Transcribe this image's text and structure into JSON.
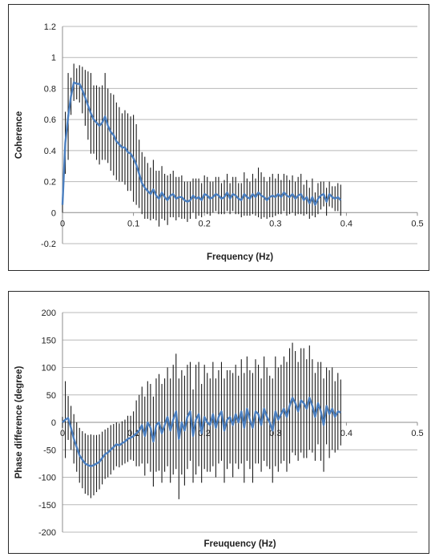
{
  "colors": {
    "grid": "#b8b8b8",
    "errorbar": "#1a1a1a",
    "line": "#4a7ebf",
    "axis": "#8c8c8c"
  },
  "chart_data": [
    {
      "type": "line",
      "title": "",
      "xlabel": "Frequency (Hz)",
      "ylabel": "Coherence",
      "xlim": [
        0,
        0.5
      ],
      "ylim": [
        -0.2,
        1.2
      ],
      "xticks": [
        0,
        0.1,
        0.2,
        0.3,
        0.4,
        0.5
      ],
      "yticks": [
        -0.2,
        0,
        0.2,
        0.4,
        0.6,
        0.8,
        1,
        1.2
      ],
      "xtick_labels": [
        "0",
        "0.1",
        "0.2",
        "0.3",
        "0.4",
        "0.5"
      ],
      "ytick_labels": [
        "-0.2",
        "0",
        "0.2",
        "0.4",
        "0.6",
        "0.8",
        "1",
        "1.2"
      ],
      "grid": true,
      "series": [
        {
          "x": [
            0.0,
            0.004,
            0.008,
            0.012,
            0.016,
            0.02,
            0.024,
            0.028,
            0.032,
            0.036,
            0.04,
            0.044,
            0.048,
            0.052,
            0.056,
            0.06,
            0.064,
            0.068,
            0.072,
            0.076,
            0.08,
            0.084,
            0.088,
            0.092,
            0.096,
            0.1,
            0.104,
            0.108,
            0.112,
            0.116,
            0.12,
            0.124,
            0.128,
            0.132,
            0.136,
            0.14,
            0.144,
            0.148,
            0.152,
            0.156,
            0.16,
            0.164,
            0.168,
            0.172,
            0.176,
            0.18,
            0.184,
            0.188,
            0.192,
            0.196,
            0.2,
            0.204,
            0.208,
            0.212,
            0.216,
            0.22,
            0.224,
            0.228,
            0.232,
            0.236,
            0.24,
            0.244,
            0.248,
            0.252,
            0.256,
            0.26,
            0.264,
            0.268,
            0.272,
            0.276,
            0.28,
            0.284,
            0.288,
            0.292,
            0.296,
            0.3,
            0.304,
            0.308,
            0.312,
            0.316,
            0.32,
            0.324,
            0.328,
            0.332,
            0.336,
            0.34,
            0.344,
            0.348,
            0.352,
            0.356,
            0.36,
            0.364,
            0.368,
            0.372,
            0.376,
            0.38,
            0.384,
            0.388,
            0.392
          ],
          "y": [
            0.05,
            0.45,
            0.62,
            0.75,
            0.84,
            0.83,
            0.83,
            0.79,
            0.74,
            0.69,
            0.64,
            0.6,
            0.58,
            0.56,
            0.58,
            0.62,
            0.56,
            0.52,
            0.5,
            0.46,
            0.44,
            0.42,
            0.42,
            0.39,
            0.38,
            0.35,
            0.31,
            0.25,
            0.19,
            0.16,
            0.14,
            0.12,
            0.15,
            0.11,
            0.09,
            0.13,
            0.1,
            0.08,
            0.11,
            0.12,
            0.09,
            0.1,
            0.1,
            0.08,
            0.07,
            0.08,
            0.11,
            0.09,
            0.1,
            0.08,
            0.12,
            0.11,
            0.09,
            0.1,
            0.12,
            0.11,
            0.09,
            0.1,
            0.13,
            0.09,
            0.12,
            0.11,
            0.09,
            0.08,
            0.12,
            0.1,
            0.09,
            0.12,
            0.1,
            0.13,
            0.11,
            0.1,
            0.08,
            0.1,
            0.11,
            0.1,
            0.12,
            0.1,
            0.13,
            0.11,
            0.1,
            0.12,
            0.09,
            0.11,
            0.12,
            0.08,
            0.1,
            0.06,
            0.1,
            0.05,
            0.09,
            0.11,
            0.12,
            0.07,
            0.12,
            0.1,
            0.09,
            0.1,
            0.08
          ],
          "err": [
            0.05,
            0.2,
            0.28,
            0.12,
            0.12,
            0.1,
            0.12,
            0.15,
            0.18,
            0.22,
            0.26,
            0.22,
            0.24,
            0.25,
            0.24,
            0.28,
            0.24,
            0.25,
            0.26,
            0.25,
            0.24,
            0.22,
            0.24,
            0.25,
            0.24,
            0.28,
            0.26,
            0.22,
            0.2,
            0.2,
            0.18,
            0.17,
            0.19,
            0.16,
            0.18,
            0.17,
            0.15,
            0.16,
            0.14,
            0.15,
            0.14,
            0.13,
            0.14,
            0.12,
            0.13,
            0.12,
            0.11,
            0.13,
            0.12,
            0.11,
            0.12,
            0.12,
            0.11,
            0.1,
            0.11,
            0.12,
            0.1,
            0.11,
            0.12,
            0.1,
            0.11,
            0.12,
            0.1,
            0.11,
            0.14,
            0.12,
            0.11,
            0.13,
            0.12,
            0.16,
            0.15,
            0.13,
            0.12,
            0.13,
            0.14,
            0.12,
            0.13,
            0.11,
            0.12,
            0.13,
            0.11,
            0.12,
            0.11,
            0.12,
            0.13,
            0.1,
            0.11,
            0.1,
            0.12,
            0.08,
            0.1,
            0.09,
            0.08,
            0.09,
            0.08,
            0.07,
            0.08,
            0.09,
            0.1
          ]
        }
      ]
    },
    {
      "type": "line",
      "title": "",
      "xlabel": "Freuquency (Hz)",
      "ylabel": "Phase difference (degree)",
      "xlim": [
        0,
        0.5
      ],
      "ylim": [
        -200,
        200
      ],
      "xticks": [
        0,
        0.1,
        0.2,
        0.3,
        0.4,
        0.5
      ],
      "yticks": [
        -200,
        -150,
        -100,
        -50,
        0,
        50,
        100,
        150,
        200
      ],
      "xtick_labels": [
        "0",
        "0.1",
        "0.2",
        "0.3",
        "0.4",
        "0.5"
      ],
      "ytick_labels": [
        "-200",
        "-150",
        "-100",
        "-50",
        "0",
        "50",
        "100",
        "150",
        "200"
      ],
      "grid": true,
      "series": [
        {
          "x": [
            0.0,
            0.004,
            0.008,
            0.012,
            0.016,
            0.02,
            0.024,
            0.028,
            0.032,
            0.036,
            0.04,
            0.044,
            0.048,
            0.052,
            0.056,
            0.06,
            0.064,
            0.068,
            0.072,
            0.076,
            0.08,
            0.084,
            0.088,
            0.092,
            0.096,
            0.1,
            0.104,
            0.108,
            0.112,
            0.116,
            0.12,
            0.124,
            0.128,
            0.132,
            0.136,
            0.14,
            0.144,
            0.148,
            0.152,
            0.156,
            0.16,
            0.164,
            0.168,
            0.172,
            0.176,
            0.18,
            0.184,
            0.188,
            0.192,
            0.196,
            0.2,
            0.204,
            0.208,
            0.212,
            0.216,
            0.22,
            0.224,
            0.228,
            0.232,
            0.236,
            0.24,
            0.244,
            0.248,
            0.252,
            0.256,
            0.26,
            0.264,
            0.268,
            0.272,
            0.276,
            0.28,
            0.284,
            0.288,
            0.292,
            0.296,
            0.3,
            0.304,
            0.308,
            0.312,
            0.316,
            0.32,
            0.324,
            0.328,
            0.332,
            0.336,
            0.34,
            0.344,
            0.348,
            0.352,
            0.356,
            0.36,
            0.364,
            0.368,
            0.372,
            0.376,
            0.38,
            0.384,
            0.388,
            0.392
          ],
          "y": [
            0,
            5,
            8,
            -10,
            -30,
            -45,
            -60,
            -68,
            -75,
            -78,
            -80,
            -78,
            -75,
            -72,
            -65,
            -58,
            -55,
            -50,
            -45,
            -40,
            -42,
            -38,
            -35,
            -30,
            -28,
            -25,
            -20,
            -15,
            -5,
            -25,
            0,
            -10,
            -35,
            -5,
            0,
            -20,
            -5,
            10,
            -15,
            5,
            20,
            -30,
            0,
            -15,
            10,
            20,
            -25,
            5,
            15,
            -20,
            10,
            0,
            -5,
            15,
            -10,
            10,
            20,
            -15,
            5,
            10,
            -5,
            15,
            0,
            20,
            -10,
            25,
            5,
            -10,
            20,
            15,
            -5,
            25,
            10,
            0,
            -15,
            20,
            5,
            15,
            25,
            10,
            30,
            45,
            35,
            20,
            40,
            35,
            25,
            45,
            30,
            10,
            35,
            20,
            -5,
            30,
            15,
            25,
            10,
            20,
            18
          ],
          "err": [
            10,
            70,
            40,
            40,
            45,
            45,
            50,
            52,
            55,
            55,
            58,
            55,
            52,
            50,
            48,
            45,
            45,
            45,
            42,
            40,
            40,
            40,
            40,
            42,
            40,
            45,
            60,
            65,
            70,
            72,
            75,
            80,
            82,
            85,
            88,
            90,
            85,
            90,
            95,
            100,
            105,
            110,
            95,
            100,
            95,
            90,
            85,
            100,
            95,
            90,
            95,
            90,
            85,
            95,
            90,
            85,
            90,
            95,
            90,
            85,
            95,
            90,
            85,
            95,
            100,
            95,
            90,
            100,
            95,
            90,
            85,
            95,
            90,
            85,
            95,
            100,
            95,
            90,
            95,
            100,
            105,
            100,
            95,
            90,
            95,
            100,
            90,
            95,
            85,
            80,
            75,
            90,
            85,
            70,
            80,
            75,
            65,
            70,
            60
          ]
        }
      ]
    }
  ]
}
